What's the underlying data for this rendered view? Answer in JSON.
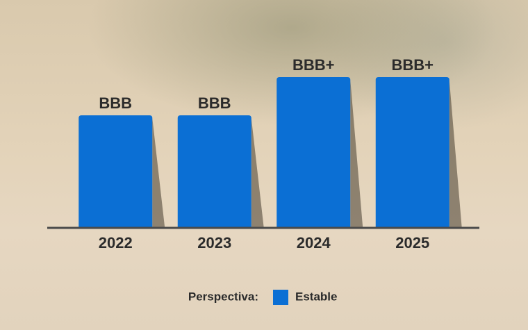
{
  "chart_data": {
    "type": "bar",
    "categories": [
      "2022",
      "2023",
      "2024",
      "2025"
    ],
    "legend_title": "Perspectiva:",
    "series": [
      {
        "name": "Estable",
        "color": "#0b6fd4",
        "values": [
          "BBB",
          "BBB",
          "BBB+",
          "BBB+"
        ]
      }
    ]
  }
}
